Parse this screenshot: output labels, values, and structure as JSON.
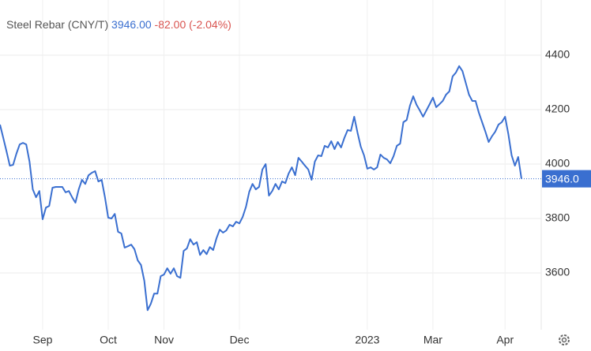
{
  "chart_data": {
    "type": "line",
    "title": "Steel Rebar (CNY/T)",
    "price": "3946.00",
    "change": "-82.00 (-2.04%)",
    "last_value_label": "3946.0",
    "categories": [
      null,
      null,
      null,
      null,
      null,
      null,
      null,
      null,
      null,
      null,
      null,
      null,
      null,
      "Sep",
      null,
      null,
      null,
      null,
      null,
      null,
      null,
      null,
      null,
      null,
      null,
      null,
      null,
      null,
      null,
      null,
      null,
      null,
      null,
      "Oct",
      null,
      null,
      null,
      null,
      null,
      null,
      null,
      null,
      null,
      null,
      null,
      null,
      null,
      null,
      null,
      null,
      "Nov",
      null,
      null,
      null,
      null,
      null,
      null,
      null,
      null,
      null,
      null,
      null,
      null,
      null,
      null,
      null,
      null,
      null,
      null,
      null,
      null,
      null,
      null,
      "Dec",
      null,
      null,
      null,
      null,
      null,
      null,
      null,
      null,
      null,
      null,
      null,
      null,
      null,
      null,
      null,
      null,
      null,
      null,
      null,
      null,
      null,
      null,
      null,
      null,
      null,
      null,
      null,
      null,
      null,
      null,
      null,
      null,
      null,
      null,
      null,
      null,
      null,
      null,
      "2023",
      null,
      null,
      null,
      null,
      null,
      null,
      null,
      null,
      null,
      null,
      null,
      null,
      null,
      null,
      null,
      null,
      null,
      null,
      null,
      "Mar",
      null,
      null,
      null,
      null,
      null,
      null,
      null,
      null,
      null,
      null,
      null,
      null,
      null,
      null,
      null,
      null,
      null,
      null,
      null,
      null,
      null,
      "Apr",
      null,
      null,
      null,
      null,
      null
    ],
    "series": [
      {
        "name": "Steel Rebar",
        "color": "#3a6fd0",
        "values": [
          4145,
          4096,
          4046,
          3994,
          3997,
          4038,
          4072,
          4078,
          4072,
          4009,
          3907,
          3878,
          3901,
          3797,
          3840,
          3846,
          3913,
          3916,
          3916,
          3916,
          3896,
          3901,
          3878,
          3858,
          3907,
          3942,
          3927,
          3959,
          3968,
          3974,
          3936,
          3942,
          3878,
          3803,
          3800,
          3817,
          3751,
          3745,
          3693,
          3698,
          3704,
          3687,
          3646,
          3629,
          3571,
          3463,
          3487,
          3524,
          3524,
          3588,
          3594,
          3617,
          3597,
          3617,
          3588,
          3582,
          3681,
          3690,
          3724,
          3704,
          3713,
          3666,
          3684,
          3669,
          3695,
          3684,
          3727,
          3759,
          3748,
          3756,
          3777,
          3771,
          3788,
          3782,
          3806,
          3843,
          3898,
          3927,
          3907,
          3916,
          3980,
          4000,
          3884,
          3901,
          3927,
          3907,
          3936,
          3930,
          3965,
          3988,
          3959,
          4023,
          4009,
          3994,
          3980,
          3942,
          4009,
          4032,
          4029,
          4067,
          4061,
          4084,
          4055,
          4081,
          4061,
          4096,
          4125,
          4122,
          4174,
          4116,
          4064,
          4032,
          3983,
          3988,
          3980,
          3988,
          4035,
          4023,
          4017,
          4003,
          4029,
          4067,
          4075,
          4154,
          4162,
          4215,
          4249,
          4218,
          4197,
          4174,
          4197,
          4220,
          4244,
          4209,
          4220,
          4232,
          4255,
          4267,
          4322,
          4336,
          4360,
          4342,
          4299,
          4255,
          4232,
          4232,
          4189,
          4154,
          4119,
          4081,
          4102,
          4119,
          4145,
          4154,
          4174,
          4110,
          4032,
          3994,
          4026,
          3946
        ]
      }
    ],
    "ylim": [
      3400,
      4600
    ],
    "yticks": [
      3600,
      3800,
      4000,
      4200,
      4400
    ],
    "grid": true
  }
}
